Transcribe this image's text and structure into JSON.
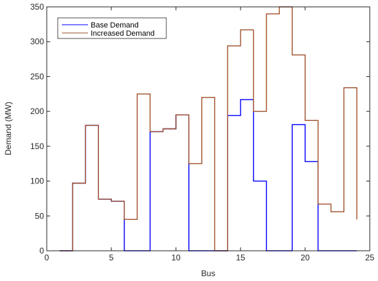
{
  "chart_data": {
    "type": "line",
    "step": "post",
    "xlabel": "Bus",
    "ylabel": "Demand (MW)",
    "xlim": [
      0,
      25
    ],
    "ylim": [
      0,
      350
    ],
    "xticks": [
      0,
      5,
      10,
      15,
      20,
      25
    ],
    "yticks": [
      0,
      50,
      100,
      150,
      200,
      250,
      300,
      350
    ],
    "grid": false,
    "legend_position": "top-left",
    "x": [
      1,
      2,
      3,
      4,
      5,
      6,
      7,
      8,
      9,
      10,
      11,
      12,
      13,
      14,
      15,
      16,
      17,
      18,
      19,
      20,
      21,
      22,
      23,
      24
    ],
    "series": [
      {
        "name": "Base Demand",
        "color": "#0000ff",
        "values": [
          0,
          97,
          180,
          74,
          71,
          0,
          0,
          171,
          175,
          195,
          0,
          0,
          0,
          194,
          217,
          100,
          0,
          0,
          181,
          128,
          0,
          0,
          0,
          0
        ]
      },
      {
        "name": "Increased Demand",
        "color": "#a0522d",
        "values": [
          0,
          97,
          180,
          74,
          71,
          45,
          225,
          171,
          175,
          195,
          125,
          220,
          0,
          294,
          317,
          200,
          340,
          350,
          281,
          187,
          67,
          56,
          234,
          45
        ]
      }
    ]
  }
}
